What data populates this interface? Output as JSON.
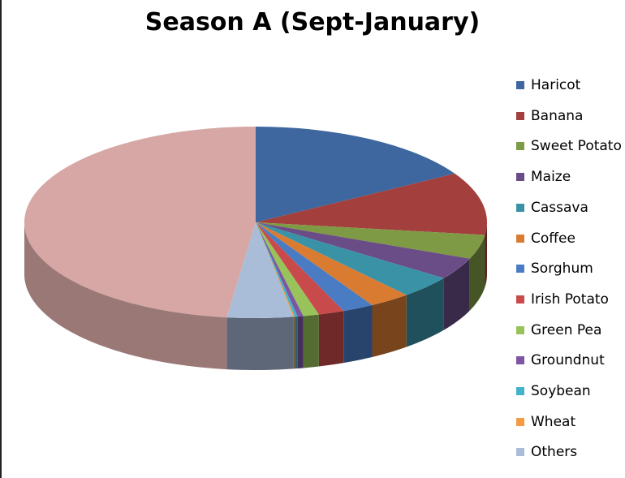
{
  "chart_data": {
    "type": "pie",
    "style": "3d",
    "title": "Season A (Sept-January)",
    "legend_position": "right",
    "categories": [
      "Haricot",
      "Banana",
      "Sweet Potato",
      "Maize",
      "Cassava",
      "Coffee",
      "Sorghum",
      "Irish Potato",
      "Green Pea",
      "Groundnut",
      "Soybean",
      "Wheat",
      "Others"
    ],
    "values": [
      16.5,
      10.6,
      4.1,
      3.7,
      3.8,
      2.9,
      2.2,
      1.8,
      1.1,
      0.4,
      0.2,
      0.1,
      4.6
    ],
    "unlabeled_remainder": 48.0,
    "colors": [
      "#3D679E",
      "#A33F3D",
      "#7F9A45",
      "#6A4C87",
      "#3A92A7",
      "#D97C32",
      "#4A7CC4",
      "#C94A4A",
      "#98C35A",
      "#7D55A5",
      "#43B3C9",
      "#F39C45",
      "#A9BCD8"
    ],
    "remainder_color": "#D6A7A4"
  }
}
